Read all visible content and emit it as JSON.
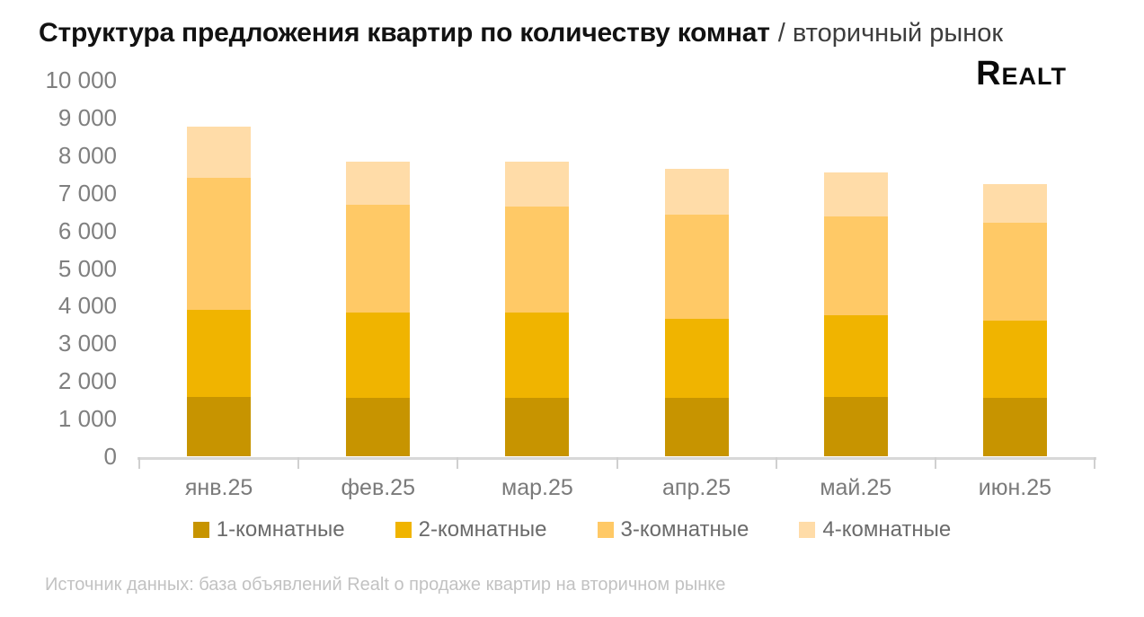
{
  "header": {
    "title": "Структура предложения квартир по количеству комнат",
    "subtitle": "/ вторичный рынок"
  },
  "brand": {
    "logo_text": "Realt"
  },
  "source": {
    "text": "Источник данных: база объявлений Realt о продаже квартир на вторичном рынке"
  },
  "colors": {
    "room1": "#C79400",
    "room2": "#F0B400",
    "room3": "#FFC966",
    "room4": "#FFDCA8",
    "axis": "#D8D8D8",
    "axis_labels": "#7F7F7F",
    "legend_text": "#6B6B6B",
    "source_text": "#C2C2C2"
  },
  "chart_data": {
    "type": "bar",
    "stacked": true,
    "title": "Структура предложения квартир по количеству комнат",
    "subtitle": "вторичный рынок",
    "categories": [
      "янв.25",
      "фев.25",
      "мар.25",
      "апр.25",
      "май.25",
      "июн.25"
    ],
    "series": [
      {
        "name": "1-комнатные",
        "color": "#C79400",
        "values": [
          1580,
          1560,
          1560,
          1560,
          1580,
          1560
        ]
      },
      {
        "name": "2-комнатные",
        "color": "#F0B400",
        "values": [
          2320,
          2250,
          2260,
          2090,
          2160,
          2050
        ]
      },
      {
        "name": "3-комнатные",
        "color": "#FFC966",
        "values": [
          3500,
          2880,
          2820,
          2760,
          2630,
          2600
        ]
      },
      {
        "name": "4-комнатные",
        "color": "#FFDCA8",
        "values": [
          1370,
          1140,
          1180,
          1220,
          1180,
          1030
        ]
      }
    ],
    "totals": [
      8770,
      7830,
      7820,
      7630,
      7550,
      7240
    ],
    "xlabel": "",
    "ylabel": "",
    "ylim": [
      0,
      10000
    ],
    "ytick_step": 1000,
    "ytick_labels": [
      "0",
      "1 000",
      "2 000",
      "3 000",
      "4 000",
      "5 000",
      "6 000",
      "7 000",
      "8 000",
      "9 000",
      "10 000"
    ],
    "grid": false,
    "legend_position": "bottom"
  }
}
